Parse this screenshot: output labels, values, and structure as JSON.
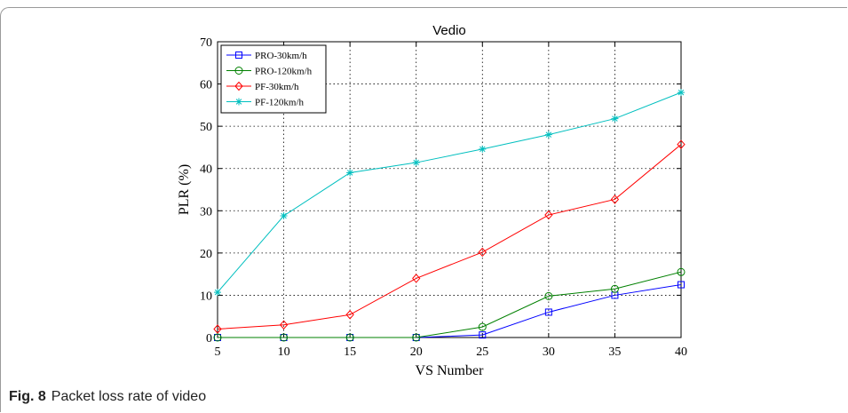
{
  "figure": {
    "label": "Fig. 8",
    "caption": "Packet loss rate of video"
  },
  "chart_data": {
    "type": "line",
    "title": "Vedio",
    "xlabel": "VS Number",
    "ylabel": "PLR (%)",
    "x": [
      5,
      10,
      15,
      20,
      25,
      30,
      35,
      40
    ],
    "xlim": [
      5,
      40
    ],
    "ylim": [
      0,
      70
    ],
    "xticks": [
      "5",
      "10",
      "15",
      "20",
      "25",
      "30",
      "35",
      "40"
    ],
    "yticks": [
      "0",
      "10",
      "20",
      "30",
      "40",
      "50",
      "60",
      "70"
    ],
    "grid": true,
    "legend_position": "top-left",
    "series": [
      {
        "name": "PRO-30km/h",
        "color": "#0000ff",
        "marker": "square",
        "values": [
          0,
          0,
          0,
          0,
          0.6,
          6.0,
          10.0,
          12.5
        ]
      },
      {
        "name": "PRO-120km/h",
        "color": "#008000",
        "marker": "circle",
        "values": [
          0,
          0,
          0,
          0,
          2.5,
          9.8,
          11.5,
          15.5
        ]
      },
      {
        "name": "PF-30km/h",
        "color": "#ff0000",
        "marker": "diamond",
        "values": [
          2.0,
          3.0,
          5.4,
          14.0,
          20.2,
          29.0,
          32.7,
          45.7
        ]
      },
      {
        "name": "PF-120km/h",
        "color": "#00bfbf",
        "marker": "star",
        "values": [
          10.7,
          28.8,
          39.0,
          41.4,
          44.6,
          48.0,
          51.8,
          58.0
        ]
      }
    ]
  }
}
